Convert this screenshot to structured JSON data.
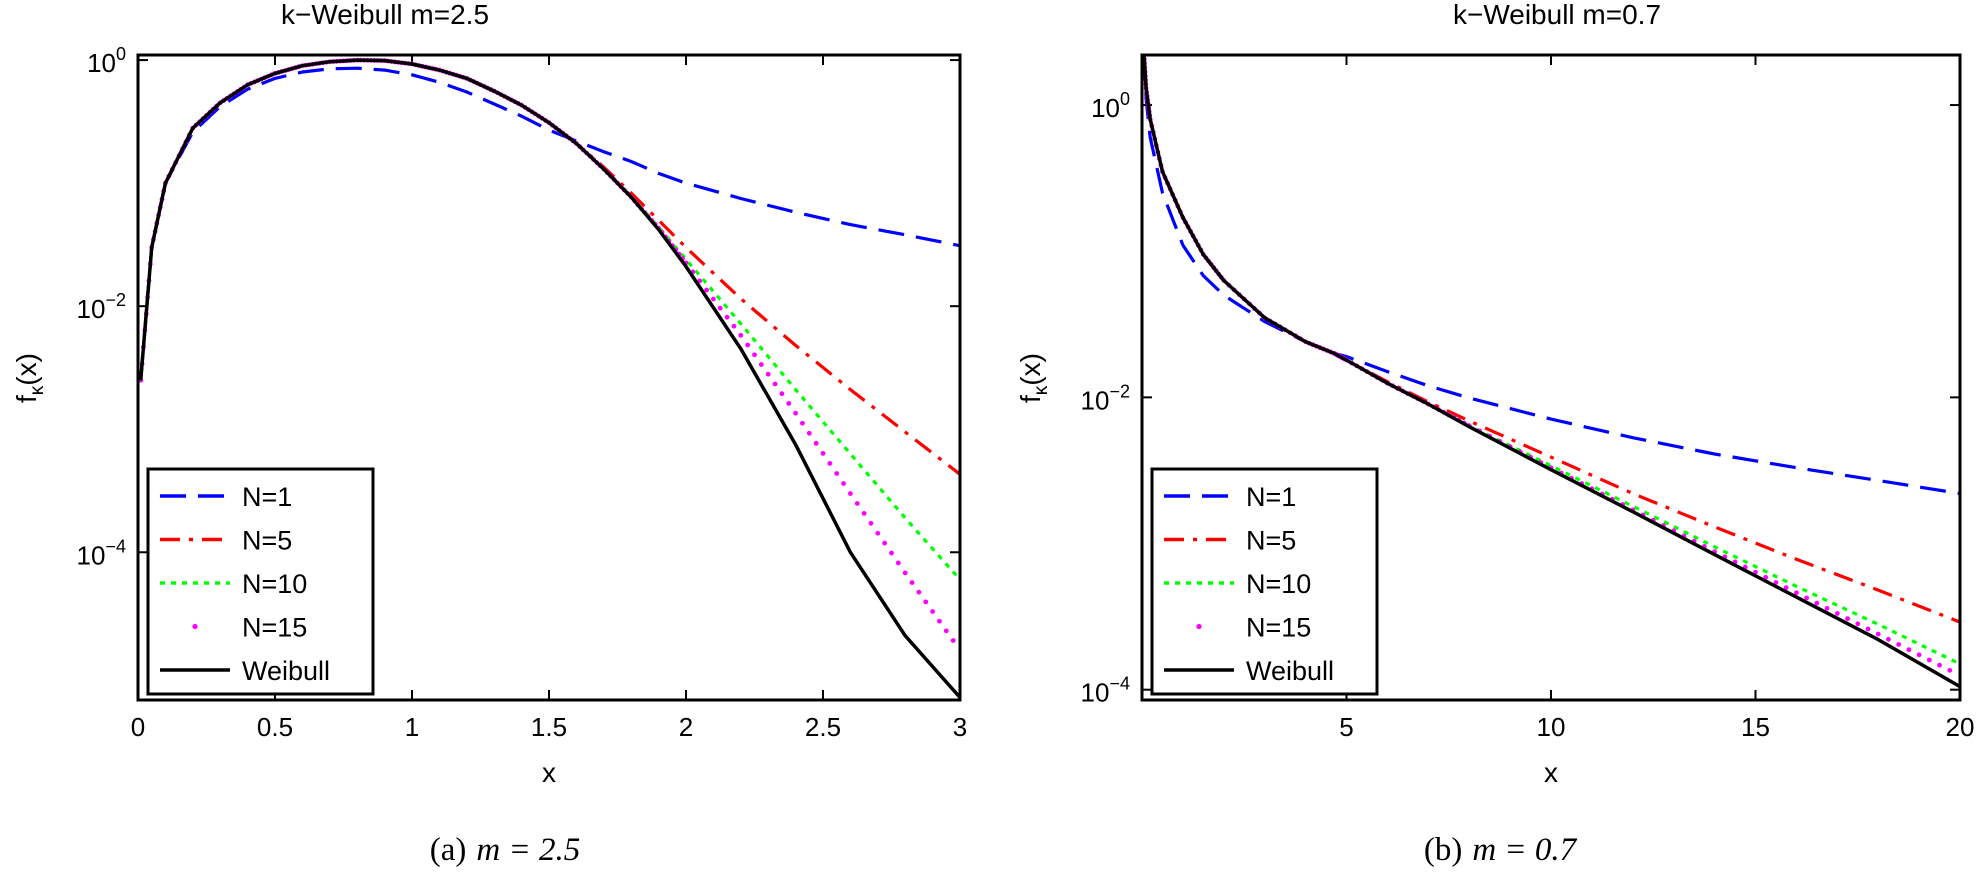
{
  "colors": {
    "N1": "#0000ff",
    "N5": "#ff0000",
    "N10": "#00ff00",
    "N15": "#ff00ff",
    "Weibull": "#000000"
  },
  "chart_data": [
    {
      "type": "line",
      "title": "k−Weibull m=2.5",
      "xlabel": "x",
      "ylabel": "fκ(x)",
      "ylabel_main": "f",
      "ylabel_sub": "κ",
      "ylabel_tail": "(x)",
      "yscale": "log",
      "xlim": [
        0,
        3
      ],
      "ylim": [
        6.3e-06,
        1.1
      ],
      "xticks": [
        0,
        0.5,
        1,
        1.5,
        2,
        2.5,
        3
      ],
      "xtick_labels": [
        "0",
        "0.5",
        "1",
        "1.5",
        "2",
        "2.5",
        "3"
      ],
      "yticks": [
        1,
        0.01,
        0.0001
      ],
      "ytick_base": "10",
      "ytick_exps": [
        "0",
        "−2",
        "−4"
      ],
      "legend_position": "bottom-left",
      "series": [
        {
          "name": "N=1",
          "key": "N1",
          "style": "dash",
          "x": [
            0.01,
            0.05,
            0.1,
            0.2,
            0.3,
            0.4,
            0.5,
            0.6,
            0.7,
            0.8,
            0.9,
            1.0,
            1.1,
            1.2,
            1.3,
            1.4,
            1.5,
            1.6,
            1.7,
            1.8,
            1.9,
            2.0,
            2.2,
            2.4,
            2.6,
            2.8,
            3.0
          ],
          "y": [
            0.0025,
            0.03,
            0.1,
            0.26,
            0.42,
            0.58,
            0.71,
            0.8,
            0.85,
            0.86,
            0.83,
            0.76,
            0.66,
            0.55,
            0.44,
            0.35,
            0.27,
            0.22,
            0.18,
            0.15,
            0.12,
            0.1,
            0.075,
            0.058,
            0.046,
            0.038,
            0.031
          ]
        },
        {
          "name": "N=5",
          "key": "N5",
          "style": "dashdot",
          "x": [
            0.01,
            0.05,
            0.1,
            0.2,
            0.3,
            0.4,
            0.5,
            0.6,
            0.7,
            0.8,
            0.9,
            1.0,
            1.1,
            1.2,
            1.3,
            1.4,
            1.5,
            1.6,
            1.7,
            1.8,
            1.9,
            2.0,
            2.2,
            2.4,
            2.6,
            2.8,
            3.0
          ],
          "y": [
            0.0025,
            0.03,
            0.1,
            0.28,
            0.45,
            0.63,
            0.78,
            0.9,
            0.97,
            1.0,
            0.99,
            0.93,
            0.83,
            0.71,
            0.56,
            0.43,
            0.31,
            0.21,
            0.135,
            0.083,
            0.05,
            0.03,
            0.0115,
            0.0048,
            0.0021,
            0.00095,
            0.00043
          ]
        },
        {
          "name": "N=10",
          "key": "N10",
          "style": "dot",
          "x": [
            0.01,
            0.05,
            0.1,
            0.2,
            0.3,
            0.4,
            0.5,
            0.6,
            0.7,
            0.8,
            0.9,
            1.0,
            1.1,
            1.2,
            1.3,
            1.4,
            1.5,
            1.6,
            1.7,
            1.8,
            1.9,
            2.0,
            2.2,
            2.4,
            2.6,
            2.8,
            3.0
          ],
          "y": [
            0.0025,
            0.03,
            0.1,
            0.28,
            0.45,
            0.63,
            0.78,
            0.9,
            0.97,
            1.0,
            0.99,
            0.93,
            0.83,
            0.71,
            0.56,
            0.43,
            0.31,
            0.21,
            0.13,
            0.078,
            0.044,
            0.024,
            0.0072,
            0.0021,
            0.00063,
            0.00019,
            6e-05
          ]
        },
        {
          "name": "N=15",
          "key": "N15",
          "style": "marker",
          "x": [
            0.01,
            0.05,
            0.1,
            0.2,
            0.3,
            0.4,
            0.5,
            0.6,
            0.7,
            0.8,
            0.9,
            1.0,
            1.1,
            1.2,
            1.3,
            1.4,
            1.5,
            1.6,
            1.7,
            1.8,
            1.9,
            2.0,
            2.2,
            2.4,
            2.6,
            2.8,
            3.0
          ],
          "y": [
            0.0025,
            0.03,
            0.1,
            0.28,
            0.45,
            0.63,
            0.78,
            0.9,
            0.97,
            1.0,
            0.99,
            0.93,
            0.83,
            0.71,
            0.56,
            0.43,
            0.31,
            0.21,
            0.13,
            0.077,
            0.043,
            0.0225,
            0.0058,
            0.00135,
            0.0003,
            6.8e-05,
            1.6e-05
          ]
        },
        {
          "name": "Weibull",
          "key": "Weibull",
          "style": "solid",
          "x": [
            0.01,
            0.05,
            0.1,
            0.2,
            0.3,
            0.4,
            0.5,
            0.6,
            0.7,
            0.8,
            0.9,
            1.0,
            1.1,
            1.2,
            1.3,
            1.4,
            1.5,
            1.6,
            1.7,
            1.8,
            1.9,
            2.0,
            2.2,
            2.4,
            2.6,
            2.8,
            3.0
          ],
          "y": [
            0.0025,
            0.03,
            0.1,
            0.28,
            0.45,
            0.63,
            0.78,
            0.9,
            0.97,
            1.0,
            0.99,
            0.93,
            0.83,
            0.71,
            0.56,
            0.43,
            0.31,
            0.21,
            0.13,
            0.077,
            0.042,
            0.021,
            0.0045,
            0.00075,
            0.0001,
            2.1e-05,
            6.6e-06
          ]
        }
      ]
    },
    {
      "type": "line",
      "title": "k−Weibull m=0.7",
      "xlabel": "x",
      "ylabel": "fκ(x)",
      "ylabel_main": "f",
      "ylabel_sub": "κ",
      "ylabel_tail": "(x)",
      "yscale": "log",
      "xlim": [
        0,
        20
      ],
      "ylim": [
        8.5e-05,
        2.2
      ],
      "xticks": [
        5,
        10,
        15,
        20
      ],
      "xtick_labels": [
        "5",
        "10",
        "15",
        "20"
      ],
      "yticks": [
        1,
        0.01,
        0.0001
      ],
      "ytick_base": "10",
      "ytick_exps": [
        "0",
        "−2",
        "−4"
      ],
      "legend_position": "bottom-left",
      "series": [
        {
          "name": "N=1",
          "key": "N1",
          "style": "dash",
          "x": [
            0.05,
            0.1,
            0.2,
            0.5,
            1,
            1.5,
            2,
            3,
            4,
            4.7,
            5,
            6,
            7,
            8,
            10,
            12,
            14,
            16,
            18,
            20
          ],
          "y": [
            2.2,
            1.1,
            0.6,
            0.25,
            0.11,
            0.068,
            0.05,
            0.033,
            0.024,
            0.02,
            0.019,
            0.015,
            0.012,
            0.0099,
            0.0071,
            0.0053,
            0.0041,
            0.0033,
            0.0027,
            0.0022
          ]
        },
        {
          "name": "N=5",
          "key": "N5",
          "style": "dashdot",
          "x": [
            0.05,
            0.1,
            0.2,
            0.5,
            1,
            1.5,
            2,
            3,
            4,
            4.7,
            5,
            6,
            7,
            8,
            10,
            12,
            14,
            16,
            18,
            20
          ],
          "y": [
            2.2,
            1.3,
            0.8,
            0.35,
            0.17,
            0.095,
            0.063,
            0.035,
            0.024,
            0.02,
            0.018,
            0.0128,
            0.0093,
            0.0069,
            0.0039,
            0.0022,
            0.0013,
            0.00078,
            0.00048,
            0.00029
          ]
        },
        {
          "name": "N=10",
          "key": "N10",
          "style": "dot",
          "x": [
            0.05,
            0.1,
            0.2,
            0.5,
            1,
            1.5,
            2,
            3,
            4,
            4.7,
            5,
            6,
            7,
            8,
            10,
            12,
            14,
            16,
            18,
            20
          ],
          "y": [
            2.2,
            1.3,
            0.8,
            0.35,
            0.17,
            0.095,
            0.063,
            0.035,
            0.024,
            0.02,
            0.018,
            0.0125,
            0.009,
            0.0064,
            0.0034,
            0.0018,
            0.00095,
            0.00051,
            0.00028,
            0.00015
          ]
        },
        {
          "name": "N=15",
          "key": "N15",
          "style": "marker",
          "x": [
            0.05,
            0.1,
            0.2,
            0.5,
            1,
            1.5,
            2,
            3,
            4,
            4.7,
            5,
            6,
            7,
            8,
            10,
            12,
            14,
            16,
            18,
            20
          ],
          "y": [
            2.2,
            1.3,
            0.8,
            0.35,
            0.17,
            0.095,
            0.063,
            0.035,
            0.024,
            0.02,
            0.018,
            0.0125,
            0.009,
            0.0064,
            0.0033,
            0.0017,
            0.00088,
            0.00046,
            0.00024,
            0.000125
          ]
        },
        {
          "name": "Weibull",
          "key": "Weibull",
          "style": "solid",
          "x": [
            0.05,
            0.1,
            0.2,
            0.5,
            1,
            1.5,
            2,
            3,
            4,
            4.7,
            5,
            6,
            7,
            8,
            10,
            12,
            14,
            16,
            18,
            20
          ],
          "y": [
            2.2,
            1.3,
            0.8,
            0.35,
            0.17,
            0.095,
            0.063,
            0.035,
            0.024,
            0.02,
            0.018,
            0.0125,
            0.009,
            0.0063,
            0.0032,
            0.00165,
            0.00084,
            0.00043,
            0.00022,
            0.000105
          ]
        }
      ]
    }
  ],
  "captions": [
    {
      "prefix": "(a)",
      "math": "m = 2.5"
    },
    {
      "prefix": "(b)",
      "math": "m = 0.7"
    }
  ]
}
